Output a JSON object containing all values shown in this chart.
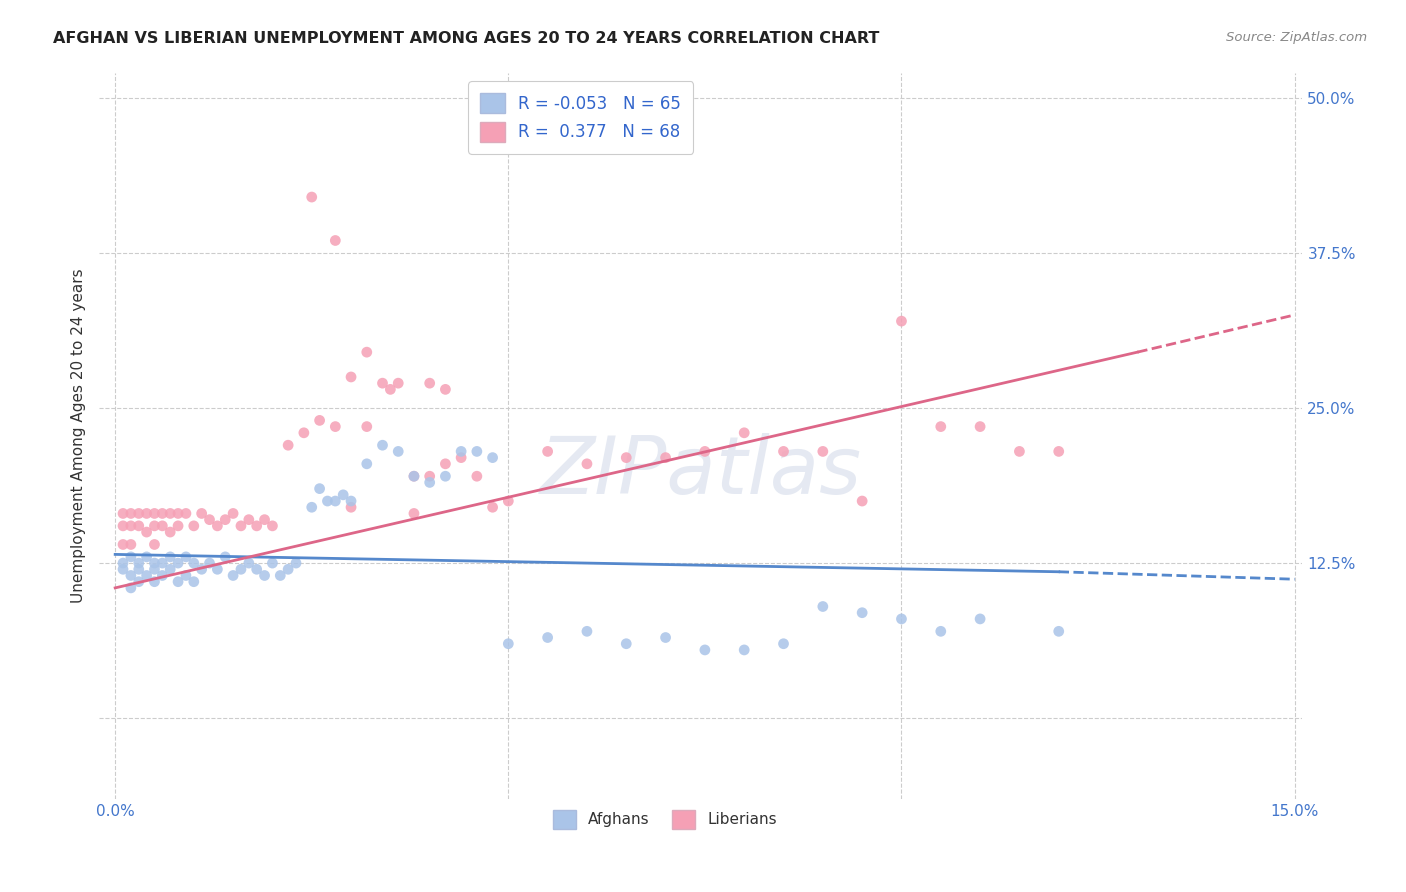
{
  "title": "AFGHAN VS LIBERIAN UNEMPLOYMENT AMONG AGES 20 TO 24 YEARS CORRELATION CHART",
  "source": "Source: ZipAtlas.com",
  "ylabel": "Unemployment Among Ages 20 to 24 years",
  "afghan_color": "#aac4e8",
  "liberian_color": "#f5a0b5",
  "afghan_line_color": "#5588cc",
  "liberian_line_color": "#dd6688",
  "background_color": "#ffffff",
  "grid_color": "#cccccc",
  "afghan_x": [
    0.001,
    0.001,
    0.002,
    0.002,
    0.002,
    0.003,
    0.003,
    0.003,
    0.004,
    0.004,
    0.005,
    0.005,
    0.005,
    0.006,
    0.006,
    0.007,
    0.007,
    0.008,
    0.008,
    0.009,
    0.009,
    0.01,
    0.01,
    0.011,
    0.012,
    0.013,
    0.014,
    0.015,
    0.016,
    0.017,
    0.018,
    0.019,
    0.02,
    0.021,
    0.022,
    0.023,
    0.025,
    0.026,
    0.027,
    0.028,
    0.029,
    0.03,
    0.032,
    0.034,
    0.036,
    0.038,
    0.04,
    0.042,
    0.044,
    0.046,
    0.048,
    0.05,
    0.055,
    0.06,
    0.065,
    0.07,
    0.075,
    0.08,
    0.085,
    0.09,
    0.095,
    0.1,
    0.105,
    0.11,
    0.12
  ],
  "afghan_y": [
    0.125,
    0.12,
    0.13,
    0.115,
    0.105,
    0.125,
    0.12,
    0.11,
    0.13,
    0.115,
    0.125,
    0.12,
    0.11,
    0.125,
    0.115,
    0.13,
    0.12,
    0.125,
    0.11,
    0.13,
    0.115,
    0.125,
    0.11,
    0.12,
    0.125,
    0.12,
    0.13,
    0.115,
    0.12,
    0.125,
    0.12,
    0.115,
    0.125,
    0.115,
    0.12,
    0.125,
    0.17,
    0.185,
    0.175,
    0.175,
    0.18,
    0.175,
    0.205,
    0.22,
    0.215,
    0.195,
    0.19,
    0.195,
    0.215,
    0.215,
    0.21,
    0.06,
    0.065,
    0.07,
    0.06,
    0.065,
    0.055,
    0.055,
    0.06,
    0.09,
    0.085,
    0.08,
    0.07,
    0.08,
    0.07
  ],
  "liberian_x": [
    0.001,
    0.001,
    0.001,
    0.002,
    0.002,
    0.002,
    0.003,
    0.003,
    0.004,
    0.004,
    0.005,
    0.005,
    0.005,
    0.006,
    0.006,
    0.007,
    0.007,
    0.008,
    0.008,
    0.009,
    0.01,
    0.011,
    0.012,
    0.013,
    0.014,
    0.015,
    0.016,
    0.017,
    0.018,
    0.019,
    0.02,
    0.022,
    0.024,
    0.026,
    0.028,
    0.03,
    0.032,
    0.034,
    0.036,
    0.038,
    0.04,
    0.042,
    0.044,
    0.046,
    0.048,
    0.05,
    0.055,
    0.06,
    0.065,
    0.07,
    0.075,
    0.08,
    0.085,
    0.09,
    0.095,
    0.1,
    0.105,
    0.11,
    0.115,
    0.12,
    0.025,
    0.028,
    0.03,
    0.032,
    0.035,
    0.038,
    0.04,
    0.042
  ],
  "liberian_y": [
    0.165,
    0.155,
    0.14,
    0.165,
    0.155,
    0.14,
    0.165,
    0.155,
    0.165,
    0.15,
    0.165,
    0.155,
    0.14,
    0.165,
    0.155,
    0.165,
    0.15,
    0.165,
    0.155,
    0.165,
    0.155,
    0.165,
    0.16,
    0.155,
    0.16,
    0.165,
    0.155,
    0.16,
    0.155,
    0.16,
    0.155,
    0.22,
    0.23,
    0.24,
    0.235,
    0.17,
    0.235,
    0.27,
    0.27,
    0.165,
    0.195,
    0.205,
    0.21,
    0.195,
    0.17,
    0.175,
    0.215,
    0.205,
    0.21,
    0.21,
    0.215,
    0.23,
    0.215,
    0.215,
    0.175,
    0.32,
    0.235,
    0.235,
    0.215,
    0.215,
    0.42,
    0.385,
    0.275,
    0.295,
    0.265,
    0.195,
    0.27,
    0.265
  ],
  "xlim": [
    0.0,
    0.15
  ],
  "ylim": [
    -0.065,
    0.52
  ],
  "yticks": [
    0.0,
    0.125,
    0.25,
    0.375,
    0.5
  ],
  "xticks": [
    0.0,
    0.05,
    0.1,
    0.15
  ],
  "ytick_labels_right": [
    "",
    "12.5%",
    "25.0%",
    "37.5%",
    "50.0%"
  ],
  "xtick_labels": [
    "0.0%",
    "",
    "",
    "15.0%"
  ]
}
